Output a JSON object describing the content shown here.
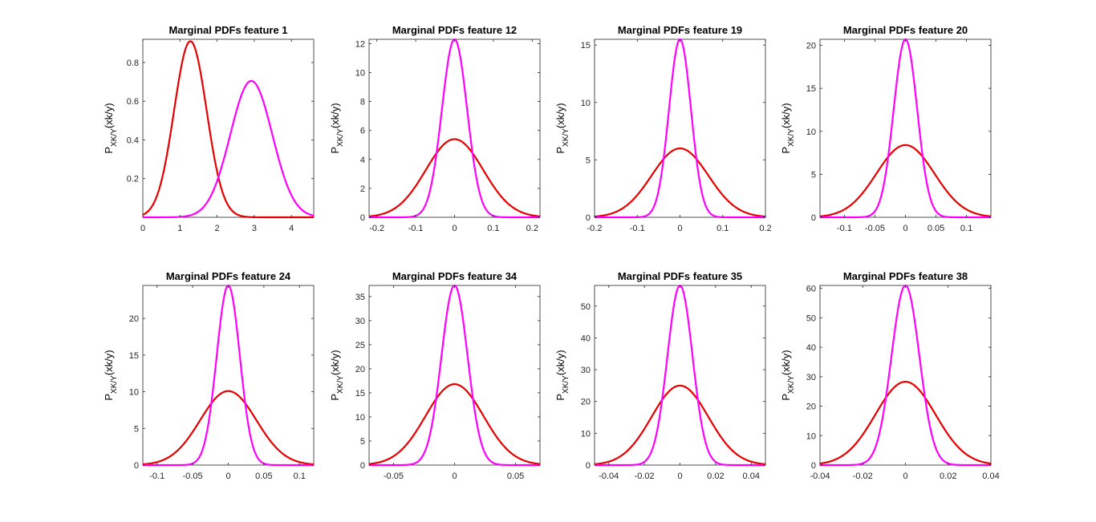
{
  "figure": {
    "colors": {
      "class1": "#e60000",
      "class2": "#ff00ff",
      "axis": "#262626",
      "background": "#ffffff"
    }
  },
  "chart_data": [
    {
      "type": "line",
      "title": "Marginal PDFs  feature 1",
      "ylabel": {
        "main": "P",
        "sub": "XK/Y",
        "tail": "(xk/y)"
      },
      "xlim": [
        0,
        4.6
      ],
      "ylim": [
        0,
        0.92
      ],
      "xticks": [
        0,
        1,
        2,
        3,
        4
      ],
      "xtick_labels": [
        "0",
        "1",
        "2",
        "3",
        "4"
      ],
      "yticks": [
        0.2,
        0.4,
        0.6,
        0.8
      ],
      "ytick_labels": [
        "0.2",
        "0.4",
        "0.6",
        "0.8"
      ],
      "series": [
        {
          "mean": 1.28,
          "peak": 0.91,
          "color": "#e60000"
        },
        {
          "mean": 2.92,
          "peak": 0.705,
          "color": "#ff00ff"
        }
      ]
    },
    {
      "type": "line",
      "title": "Marginal PDFs  feature 12",
      "ylabel": {
        "main": "P",
        "sub": "XK/Y",
        "tail": "(xk/y)"
      },
      "xlim": [
        -0.22,
        0.22
      ],
      "ylim": [
        0,
        12.3
      ],
      "xticks": [
        -0.2,
        -0.1,
        0,
        0.1,
        0.2
      ],
      "xtick_labels": [
        "-0.2",
        "-0.1",
        "0",
        "0.1",
        "0.2"
      ],
      "yticks": [
        0,
        2,
        4,
        6,
        8,
        10,
        12
      ],
      "ytick_labels": [
        "0",
        "2",
        "4",
        "6",
        "8",
        "10",
        "12"
      ],
      "series": [
        {
          "mean": 0,
          "peak": 5.4,
          "color": "#e60000"
        },
        {
          "mean": 0,
          "peak": 12.3,
          "color": "#ff00ff"
        }
      ]
    },
    {
      "type": "line",
      "title": "Marginal PDFs  feature 19",
      "ylabel": {
        "main": "P",
        "sub": "XK/Y",
        "tail": "(xk/y)"
      },
      "xlim": [
        -0.2,
        0.2
      ],
      "ylim": [
        0,
        15.5
      ],
      "xticks": [
        -0.2,
        -0.1,
        0,
        0.1,
        0.2
      ],
      "xtick_labels": [
        "-0.2",
        "-0.1",
        "0",
        "0.1",
        "0.2"
      ],
      "yticks": [
        0,
        5,
        10,
        15
      ],
      "ytick_labels": [
        "0",
        "5",
        "10",
        "15"
      ],
      "series": [
        {
          "mean": 0,
          "peak": 6.0,
          "color": "#e60000"
        },
        {
          "mean": 0,
          "peak": 15.5,
          "color": "#ff00ff"
        }
      ]
    },
    {
      "type": "line",
      "title": "Marginal PDFs  feature 20",
      "ylabel": {
        "main": "P",
        "sub": "XK/Y",
        "tail": "(xk/y)"
      },
      "xlim": [
        -0.14,
        0.14
      ],
      "ylim": [
        0,
        20.7
      ],
      "xticks": [
        -0.1,
        -0.05,
        0,
        0.05,
        0.1
      ],
      "xtick_labels": [
        "-0.1",
        "-0.05",
        "0",
        "0.05",
        "0.1"
      ],
      "yticks": [
        0,
        5,
        10,
        15,
        20
      ],
      "ytick_labels": [
        "0",
        "5",
        "10",
        "15",
        "20"
      ],
      "series": [
        {
          "mean": 0,
          "peak": 8.4,
          "color": "#e60000"
        },
        {
          "mean": 0,
          "peak": 20.7,
          "color": "#ff00ff"
        }
      ]
    },
    {
      "type": "line",
      "title": "Marginal PDFs  feature 24",
      "ylabel": {
        "main": "P",
        "sub": "XK/Y",
        "tail": "(xk/y)"
      },
      "xlim": [
        -0.12,
        0.12
      ],
      "ylim": [
        0,
        24.5
      ],
      "xticks": [
        -0.1,
        -0.05,
        0,
        0.05,
        0.1
      ],
      "xtick_labels": [
        "-0.1",
        "-0.05",
        "0",
        "0.05",
        "0.1"
      ],
      "yticks": [
        0,
        5,
        10,
        15,
        20
      ],
      "ytick_labels": [
        "0",
        "5",
        "10",
        "15",
        "20"
      ],
      "series": [
        {
          "mean": 0,
          "peak": 10.1,
          "color": "#e60000"
        },
        {
          "mean": 0,
          "peak": 24.5,
          "color": "#ff00ff"
        }
      ]
    },
    {
      "type": "line",
      "title": "Marginal PDFs  feature 34",
      "ylabel": {
        "main": "P",
        "sub": "XK/Y",
        "tail": "(xk/y)"
      },
      "xlim": [
        -0.07,
        0.07
      ],
      "ylim": [
        0,
        37.3
      ],
      "xticks": [
        -0.05,
        0,
        0.05
      ],
      "xtick_labels": [
        "-0.05",
        "0",
        "0.05"
      ],
      "yticks": [
        0,
        5,
        10,
        15,
        20,
        25,
        30,
        35
      ],
      "ytick_labels": [
        "0",
        "5",
        "10",
        "15",
        "20",
        "25",
        "30",
        "35"
      ],
      "series": [
        {
          "mean": 0,
          "peak": 16.8,
          "color": "#e60000"
        },
        {
          "mean": 0,
          "peak": 37.3,
          "color": "#ff00ff"
        }
      ]
    },
    {
      "type": "line",
      "title": "Marginal PDFs  feature 35",
      "ylabel": {
        "main": "P",
        "sub": "XK/Y",
        "tail": "(xk/y)"
      },
      "xlim": [
        -0.048,
        0.048
      ],
      "ylim": [
        0,
        56.5
      ],
      "xticks": [
        -0.04,
        -0.02,
        0,
        0.02,
        0.04
      ],
      "xtick_labels": [
        "-0.04",
        "-0.02",
        "0",
        "0.02",
        "0.04"
      ],
      "yticks": [
        0,
        10,
        20,
        30,
        40,
        50
      ],
      "ytick_labels": [
        "0",
        "10",
        "20",
        "30",
        "40",
        "50"
      ],
      "series": [
        {
          "mean": 0,
          "peak": 25.0,
          "color": "#e60000"
        },
        {
          "mean": 0,
          "peak": 56.5,
          "color": "#ff00ff"
        }
      ]
    },
    {
      "type": "line",
      "title": "Marginal PDFs  feature 38",
      "ylabel": {
        "main": "P",
        "sub": "XK/Y",
        "tail": "(xk/y)"
      },
      "xlim": [
        -0.04,
        0.04
      ],
      "ylim": [
        0,
        61
      ],
      "xticks": [
        -0.04,
        -0.02,
        0,
        0.02,
        0.04
      ],
      "xtick_labels": [
        "-0.04",
        "-0.02",
        "0",
        "0.02",
        "0.04"
      ],
      "yticks": [
        0,
        10,
        20,
        30,
        40,
        50,
        60
      ],
      "ytick_labels": [
        "0",
        "10",
        "20",
        "30",
        "40",
        "50",
        "60"
      ],
      "series": [
        {
          "mean": 0,
          "peak": 28.3,
          "color": "#e60000"
        },
        {
          "mean": 0,
          "peak": 61,
          "color": "#ff00ff"
        }
      ]
    }
  ]
}
